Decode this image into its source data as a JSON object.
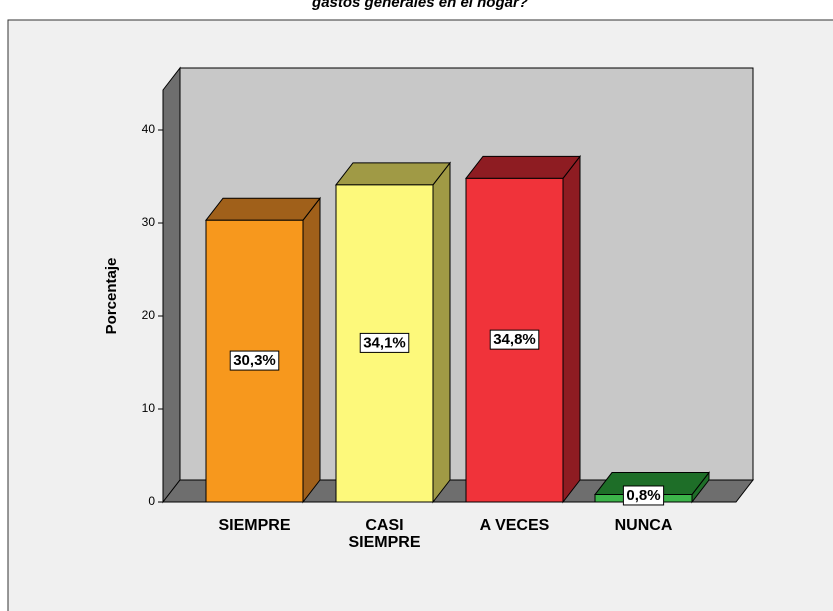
{
  "chart_data": {
    "type": "bar3d",
    "title": "gastos generales en el hogar?",
    "ylabel": "Porcentaje",
    "categories": [
      "SIEMPRE",
      "CASI SIEMPRE",
      "A VECES",
      "NUNCA"
    ],
    "values": [
      30.3,
      34.1,
      34.8,
      0.8
    ],
    "value_labels": [
      "30,3%",
      "34,1%",
      "34,8%",
      "0,8%"
    ],
    "colors": [
      "#f7981d",
      "#fdf97b",
      "#f0333a",
      "#3cb44a"
    ],
    "side_colors": [
      "#a0601a",
      "#a09a45",
      "#8e1c22",
      "#1e6e28"
    ],
    "ylim": [
      0,
      44.3
    ],
    "yticks": [
      0,
      10,
      20,
      30,
      40
    ]
  }
}
